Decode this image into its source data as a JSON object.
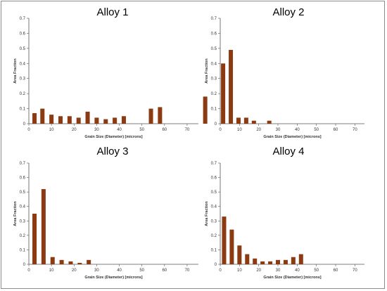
{
  "chart_data": [
    {
      "type": "bar",
      "title": "Alloy 1",
      "xlabel": "Grain Size (Diameter) [microns]",
      "ylabel": "Area Fraction",
      "xlim": [
        0,
        75
      ],
      "ylim": [
        0,
        0.7
      ],
      "x_ticks": [
        0,
        10,
        20,
        30,
        40,
        50,
        60,
        70
      ],
      "y_ticks": [
        0,
        0.1,
        0.2,
        0.3,
        0.4,
        0.5,
        0.6,
        0.7
      ],
      "grid": false,
      "color": "#8B3A12",
      "x": [
        2.5,
        6.0,
        10.0,
        14.0,
        18.0,
        22.0,
        26.0,
        30.0,
        34.0,
        38.0,
        42.0,
        54.0,
        58.0,
        78.0
      ],
      "values": [
        0.07,
        0.1,
        0.06,
        0.05,
        0.05,
        0.04,
        0.08,
        0.04,
        0.03,
        0.04,
        0.05,
        0.1,
        0.11,
        0.18
      ]
    },
    {
      "type": "bar",
      "title": "Alloy 2",
      "xlabel": "Grain Size (Diameter) [microns]",
      "ylabel": "Area Fraction",
      "xlim": [
        0,
        75
      ],
      "ylim": [
        0,
        0.7
      ],
      "x_ticks": [
        0,
        10,
        20,
        30,
        40,
        50,
        60,
        70
      ],
      "y_ticks": [
        0,
        0.1,
        0.2,
        0.3,
        0.4,
        0.5,
        0.6,
        0.7
      ],
      "grid": false,
      "color": "#8B3A12",
      "x": [
        1.5,
        5.5,
        9.5,
        13.5,
        17.5,
        25.5
      ],
      "values": [
        0.4,
        0.49,
        0.04,
        0.04,
        0.02,
        0.02
      ]
    },
    {
      "type": "bar",
      "title": "Alloy 3",
      "xlabel": "Grain Size (Diameter) [microns]",
      "ylabel": "Area Fraction",
      "xlim": [
        0,
        75
      ],
      "ylim": [
        0,
        0.7
      ],
      "x_ticks": [
        0,
        10,
        20,
        30,
        40,
        50,
        60,
        70
      ],
      "y_ticks": [
        0,
        0.1,
        0.2,
        0.3,
        0.4,
        0.5,
        0.6,
        0.7
      ],
      "grid": false,
      "color": "#8B3A12",
      "x": [
        2.5,
        6.5,
        10.5,
        14.5,
        18.5,
        22.5,
        26.5
      ],
      "values": [
        0.35,
        0.52,
        0.05,
        0.03,
        0.02,
        0.01,
        0.03
      ]
    },
    {
      "type": "bar",
      "title": "Alloy 4",
      "xlabel": "Grain Size (Diameter) [microns]",
      "ylabel": "Area Fraction",
      "xlim": [
        0,
        75
      ],
      "ylim": [
        0,
        0.7
      ],
      "x_ticks": [
        0,
        10,
        20,
        30,
        40,
        50,
        60,
        70
      ],
      "y_ticks": [
        0,
        0.1,
        0.2,
        0.3,
        0.4,
        0.5,
        0.6,
        0.7
      ],
      "grid": false,
      "color": "#8B3A12",
      "x": [
        2.0,
        6.0,
        10.0,
        14.0,
        18.0,
        22.0,
        26.0,
        30.0,
        34.0,
        38.0,
        42.0
      ],
      "values": [
        0.33,
        0.24,
        0.13,
        0.07,
        0.04,
        0.02,
        0.02,
        0.03,
        0.03,
        0.05,
        0.07
      ]
    }
  ]
}
